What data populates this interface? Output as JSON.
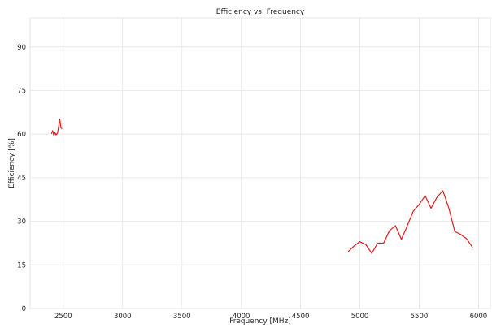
{
  "chart_data": {
    "type": "line",
    "title": "Efficiency vs. Frequency",
    "xlabel": "Frequency [MHz]",
    "ylabel": "Efficiency [%]",
    "xlim": [
      2220,
      6100
    ],
    "ylim": [
      0,
      100
    ],
    "xticks": [
      2500,
      3000,
      3500,
      4000,
      4500,
      5000,
      5500,
      6000
    ],
    "yticks": [
      0,
      15,
      30,
      45,
      60,
      75,
      90
    ],
    "grid": true,
    "line_color": "#e31a1c",
    "series": [
      {
        "segments": [
          {
            "x": [
              2400,
              2410,
              2420,
              2430,
              2440,
              2450,
              2460,
              2470,
              2480,
              2490
            ],
            "y": [
              60.1,
              61.2,
              59.6,
              60.5,
              59.7,
              60.3,
              62.4,
              65.2,
              62.2,
              61.8
            ]
          },
          {
            "x": [
              4900,
              4950,
              5000,
              5050,
              5100,
              5150,
              5200,
              5250,
              5300,
              5350,
              5400,
              5450,
              5500,
              5550,
              5600,
              5650,
              5700,
              5750,
              5800,
              5850,
              5900,
              5950
            ],
            "y": [
              19.5,
              21.5,
              23.0,
              22.0,
              19.0,
              22.5,
              22.5,
              26.8,
              28.5,
              23.8,
              28.5,
              33.5,
              35.8,
              38.8,
              34.5,
              38.3,
              40.5,
              34.5,
              26.5,
              25.5,
              24.0,
              21.0
            ]
          }
        ]
      }
    ]
  }
}
